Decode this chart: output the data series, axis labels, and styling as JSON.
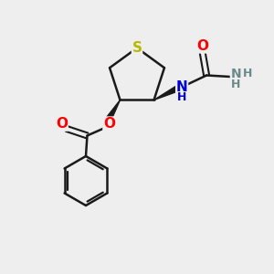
{
  "background_color": "#eeeeee",
  "atom_colors": {
    "S": "#b8b800",
    "O": "#ff0000",
    "N_blue": "#0000cc",
    "N_gray": "#6a8a8a",
    "C": "#000000",
    "H": "#6a8a8a"
  },
  "bond_color": "#1a1a1a",
  "figsize": [
    3.0,
    3.0
  ],
  "dpi": 100
}
